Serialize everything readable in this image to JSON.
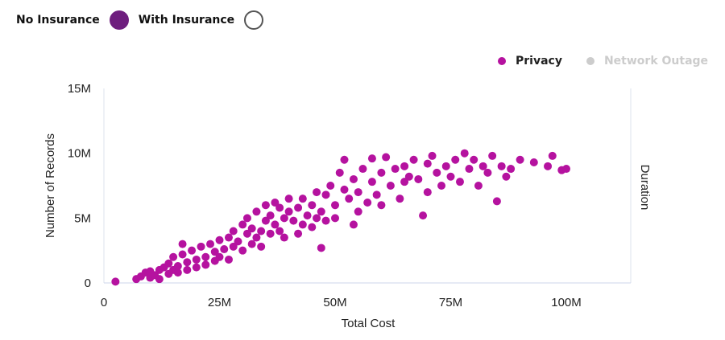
{
  "toggle": {
    "no_insurance": "No Insurance",
    "with_insurance": "With Insurance",
    "no_color": "#6e1e7e",
    "selected": "No Insurance"
  },
  "chart_data": {
    "type": "scatter",
    "xlabel": "Total Cost",
    "ylabel": "Number of Records",
    "y2label": "Duration",
    "xlim": [
      0,
      114
    ],
    "ylim": [
      0,
      15
    ],
    "xticks": [
      "0",
      "25M",
      "50M",
      "75M",
      "100M"
    ],
    "yticks": [
      "0",
      "5M",
      "10M",
      "15M"
    ],
    "legend": [
      {
        "name": "Privacy",
        "color": "#b5129f",
        "active": true
      },
      {
        "name": "Network Outage",
        "color": "#cccccc",
        "active": false
      }
    ],
    "legend_position": "top-right",
    "grid": false,
    "series": [
      {
        "name": "Privacy",
        "points": [
          [
            2.5,
            0.1
          ],
          [
            7,
            0.3
          ],
          [
            8,
            0.5
          ],
          [
            9,
            0.8
          ],
          [
            10,
            0.4
          ],
          [
            10,
            0.9
          ],
          [
            11,
            0.6
          ],
          [
            12,
            1.0
          ],
          [
            12,
            0.3
          ],
          [
            13,
            1.2
          ],
          [
            14,
            0.7
          ],
          [
            14,
            1.5
          ],
          [
            15,
            1.0
          ],
          [
            15,
            2.0
          ],
          [
            16,
            1.3
          ],
          [
            16,
            0.8
          ],
          [
            17,
            2.2
          ],
          [
            17,
            3.0
          ],
          [
            18,
            1.6
          ],
          [
            18,
            1.0
          ],
          [
            19,
            2.5
          ],
          [
            20,
            1.8
          ],
          [
            20,
            1.2
          ],
          [
            21,
            2.8
          ],
          [
            22,
            2.0
          ],
          [
            22,
            1.4
          ],
          [
            23,
            3.0
          ],
          [
            24,
            2.4
          ],
          [
            24,
            1.7
          ],
          [
            25,
            3.3
          ],
          [
            25,
            2.0
          ],
          [
            26,
            2.6
          ],
          [
            27,
            3.5
          ],
          [
            27,
            1.8
          ],
          [
            28,
            4.0
          ],
          [
            28,
            2.8
          ],
          [
            29,
            3.2
          ],
          [
            30,
            4.5
          ],
          [
            30,
            2.5
          ],
          [
            31,
            3.8
          ],
          [
            31,
            5.0
          ],
          [
            32,
            3.0
          ],
          [
            32,
            4.2
          ],
          [
            33,
            3.5
          ],
          [
            33,
            5.5
          ],
          [
            34,
            4.0
          ],
          [
            34,
            2.8
          ],
          [
            35,
            4.8
          ],
          [
            35,
            6.0
          ],
          [
            36,
            3.8
          ],
          [
            36,
            5.2
          ],
          [
            37,
            4.5
          ],
          [
            37,
            6.2
          ],
          [
            38,
            4.0
          ],
          [
            38,
            5.8
          ],
          [
            39,
            5.0
          ],
          [
            39,
            3.5
          ],
          [
            40,
            5.5
          ],
          [
            40,
            6.5
          ],
          [
            41,
            4.8
          ],
          [
            42,
            5.8
          ],
          [
            42,
            3.8
          ],
          [
            43,
            6.5
          ],
          [
            43,
            4.5
          ],
          [
            44,
            5.2
          ],
          [
            45,
            6.0
          ],
          [
            45,
            4.3
          ],
          [
            46,
            5.0
          ],
          [
            46,
            7.0
          ],
          [
            47,
            2.7
          ],
          [
            47,
            5.5
          ],
          [
            48,
            6.8
          ],
          [
            48,
            4.8
          ],
          [
            49,
            7.5
          ],
          [
            50,
            6.0
          ],
          [
            50,
            5.0
          ],
          [
            51,
            8.5
          ],
          [
            52,
            7.2
          ],
          [
            52,
            9.5
          ],
          [
            53,
            6.5
          ],
          [
            54,
            8.0
          ],
          [
            54,
            4.5
          ],
          [
            55,
            7.0
          ],
          [
            55,
            5.5
          ],
          [
            56,
            8.8
          ],
          [
            57,
            6.2
          ],
          [
            58,
            7.8
          ],
          [
            58,
            9.6
          ],
          [
            59,
            6.8
          ],
          [
            60,
            8.5
          ],
          [
            60,
            6.0
          ],
          [
            61,
            9.7
          ],
          [
            62,
            7.5
          ],
          [
            63,
            8.8
          ],
          [
            64,
            6.5
          ],
          [
            65,
            9.0
          ],
          [
            65,
            7.8
          ],
          [
            66,
            8.2
          ],
          [
            67,
            9.5
          ],
          [
            68,
            8.0
          ],
          [
            69,
            5.2
          ],
          [
            70,
            9.2
          ],
          [
            70,
            7.0
          ],
          [
            71,
            9.8
          ],
          [
            72,
            8.5
          ],
          [
            73,
            7.5
          ],
          [
            74,
            9.0
          ],
          [
            75,
            8.2
          ],
          [
            76,
            9.5
          ],
          [
            77,
            7.8
          ],
          [
            78,
            10.0
          ],
          [
            79,
            8.8
          ],
          [
            80,
            9.5
          ],
          [
            81,
            7.5
          ],
          [
            82,
            9.0
          ],
          [
            83,
            8.5
          ],
          [
            84,
            9.8
          ],
          [
            85,
            6.3
          ],
          [
            86,
            9.0
          ],
          [
            87,
            8.2
          ],
          [
            88,
            8.8
          ],
          [
            90,
            9.5
          ],
          [
            93,
            9.3
          ],
          [
            96,
            9.0
          ],
          [
            97,
            9.8
          ],
          [
            99,
            8.7
          ],
          [
            100,
            8.8
          ]
        ]
      }
    ]
  }
}
